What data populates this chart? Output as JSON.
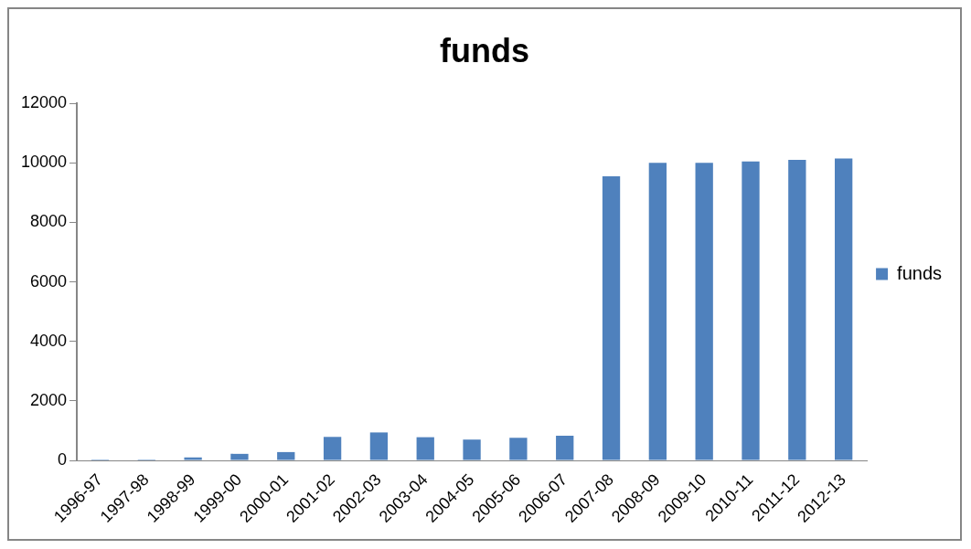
{
  "chart_data": {
    "type": "bar",
    "title": "funds",
    "categories": [
      "1996-97",
      "1997-98",
      "1998-99",
      "1999-00",
      "2000-01",
      "2001-02",
      "2002-03",
      "2003-04",
      "2004-05",
      "2005-06",
      "2006-07",
      "2007-08",
      "2008-09",
      "2009-10",
      "2010-11",
      "2011-12",
      "2012-13"
    ],
    "series": [
      {
        "name": "funds",
        "color": "#4f81bd",
        "values": [
          30,
          30,
          100,
          220,
          280,
          790,
          940,
          780,
          700,
          760,
          830,
          9550,
          10000,
          10000,
          10050,
          10100,
          10150
        ]
      }
    ],
    "ylim": [
      0,
      12000
    ],
    "yticks": [
      0,
      2000,
      4000,
      6000,
      8000,
      10000,
      12000
    ],
    "grid": false,
    "legend": "right"
  }
}
